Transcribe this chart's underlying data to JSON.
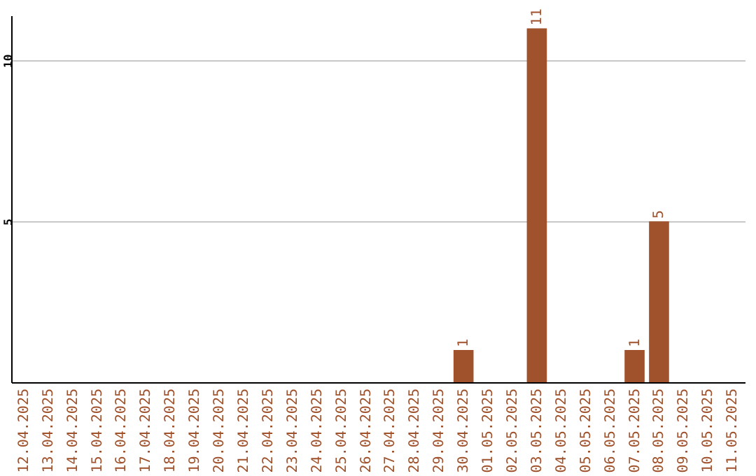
{
  "chart_data": {
    "type": "bar",
    "categories": [
      "12.04.2025",
      "13.04.2025",
      "14.04.2025",
      "15.04.2025",
      "16.04.2025",
      "17.04.2025",
      "18.04.2025",
      "19.04.2025",
      "20.04.2025",
      "21.04.2025",
      "22.04.2025",
      "23.04.2025",
      "24.04.2025",
      "25.04.2025",
      "26.04.2025",
      "27.04.2025",
      "28.04.2025",
      "29.04.2025",
      "30.04.2025",
      "01.05.2025",
      "02.05.2025",
      "03.05.2025",
      "04.05.2025",
      "05.05.2025",
      "06.05.2025",
      "07.05.2025",
      "08.05.2025",
      "09.05.2025",
      "10.05.2025",
      "11.05.2025"
    ],
    "values": [
      null,
      null,
      null,
      null,
      null,
      null,
      null,
      null,
      null,
      null,
      null,
      null,
      null,
      null,
      null,
      null,
      null,
      null,
      1,
      null,
      null,
      11,
      null,
      null,
      null,
      1,
      5,
      null,
      null,
      null
    ],
    "color": "#a0522d",
    "ylim": [
      0,
      11.4
    ],
    "yticks": [
      5,
      10
    ],
    "grid": "y",
    "data_labels": true
  }
}
